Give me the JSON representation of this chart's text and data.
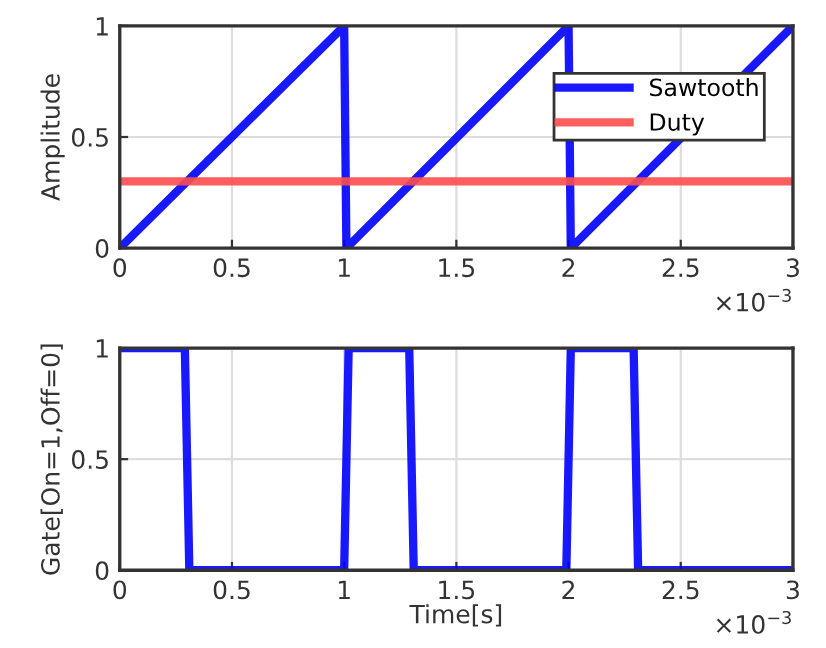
{
  "chart_data": [
    {
      "type": "line",
      "ylabel": "Amplitude",
      "legend": "top right",
      "grid": true,
      "xlim": [
        0,
        3
      ],
      "xticks": [
        0,
        0.5,
        1,
        1.5,
        2,
        2.5,
        3
      ],
      "ylim": [
        0,
        1
      ],
      "yticks": [
        0,
        0.5,
        1
      ],
      "annotations": [
        "×10$^{−3}$"
      ],
      "series": [
        {
          "name": "Sawtooth",
          "color": "#0000ff",
          "x": [
            0,
            1,
            1.01,
            2,
            2.01,
            3
          ],
          "values": [
            0,
            1,
            0,
            1,
            0,
            1
          ]
        },
        {
          "name": "Duty",
          "color": "#ff4d4d",
          "x": [
            0,
            3
          ],
          "values": [
            0.3,
            0.3
          ]
        }
      ]
    },
    {
      "type": "line",
      "xlabel": "Time[s]",
      "ylabel": "Gate[On=1,Off=0]",
      "grid": true,
      "xlim": [
        0,
        3
      ],
      "xticks": [
        0,
        0.5,
        1,
        1.5,
        2,
        2.5,
        3
      ],
      "ylim": [
        0,
        1
      ],
      "yticks": [
        0,
        0.5,
        1
      ],
      "annotations": [
        "×10$^{−3}$"
      ],
      "series": [
        {
          "color": "#0000ff",
          "x": [
            0,
            0.29,
            0.31,
            1,
            1.02,
            1.29,
            1.31,
            1.99,
            2.01,
            2.29,
            2.31,
            3
          ],
          "values": [
            1,
            1,
            0,
            0,
            1,
            1,
            0,
            0,
            1,
            1,
            0,
            0
          ]
        }
      ]
    }
  ]
}
